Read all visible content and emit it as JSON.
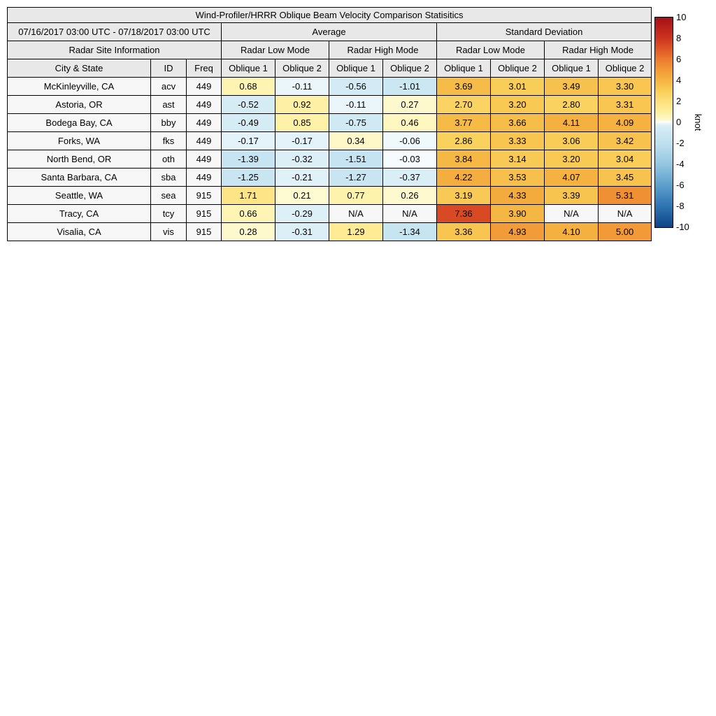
{
  "title": "Wind-Profiler/HRRR Oblique Beam Velocity Comparison Statisitics",
  "header": {
    "date_range": "07/16/2017 03:00 UTC - 07/18/2017 03:00 UTC",
    "group_average": "Average",
    "group_stddev": "Standard Deviation",
    "site_info": "Radar Site Information",
    "modes": [
      "Radar Low Mode",
      "Radar High Mode",
      "Radar Low Mode",
      "Radar High Mode"
    ],
    "columns": [
      "City & State",
      "ID",
      "Freq",
      "Oblique 1",
      "Oblique 2",
      "Oblique 1",
      "Oblique 2",
      "Oblique 1",
      "Oblique 2",
      "Oblique 1",
      "Oblique 2"
    ]
  },
  "colors": {
    "header_bg": "#E8E8E8",
    "site_cell_bg": "#F7F7F7",
    "na_cell_bg": "#F7F7F7",
    "border": "#000000",
    "colormap_stops": [
      {
        "v": -10,
        "c": "#0E4485"
      },
      {
        "v": -8,
        "c": "#2F73B3"
      },
      {
        "v": -6,
        "c": "#5C9FCB"
      },
      {
        "v": -4,
        "c": "#93C6E0"
      },
      {
        "v": -2,
        "c": "#BFE0EF"
      },
      {
        "v": -1,
        "c": "#CBE7F2"
      },
      {
        "v": -0.5,
        "c": "#D5ECF5"
      },
      {
        "v": -0.2,
        "c": "#E0F1F8"
      },
      {
        "v": -0.06,
        "c": "#EFF8FB"
      },
      {
        "v": 0,
        "c": "#FDFEFE"
      },
      {
        "v": 0.06,
        "c": "#FFFEF2"
      },
      {
        "v": 0.2,
        "c": "#FEFAD2"
      },
      {
        "v": 0.7,
        "c": "#FEF4B0"
      },
      {
        "v": 1.2,
        "c": "#FEEC97"
      },
      {
        "v": 2,
        "c": "#FCE07C"
      },
      {
        "v": 3,
        "c": "#F9CE58"
      },
      {
        "v": 4,
        "c": "#F5B441"
      },
      {
        "v": 5,
        "c": "#F19A37"
      },
      {
        "v": 6,
        "c": "#EC7A2D"
      },
      {
        "v": 8,
        "c": "#CE3420"
      },
      {
        "v": 10,
        "c": "#A31118"
      }
    ]
  },
  "chart_data": {
    "type": "heatmap",
    "title": "Wind-Profiler/HRRR Oblique Beam Velocity Comparison Statisitics",
    "unit": "knot",
    "column_groups": [
      "Average / Radar Low Mode / Oblique 1",
      "Average / Radar Low Mode / Oblique 2",
      "Average / Radar High Mode / Oblique 1",
      "Average / Radar High Mode / Oblique 2",
      "Standard Deviation / Radar Low Mode / Oblique 1",
      "Standard Deviation / Radar Low Mode / Oblique 2",
      "Standard Deviation / Radar High Mode / Oblique 1",
      "Standard Deviation / Radar High Mode / Oblique 2"
    ],
    "rows": [
      {
        "city": "McKinleyville, CA",
        "id": "acv",
        "freq": "449",
        "values": [
          "0.68",
          "-0.11",
          "-0.56",
          "-1.01",
          "3.69",
          "3.01",
          "3.49",
          "3.30"
        ]
      },
      {
        "city": "Astoria, OR",
        "id": "ast",
        "freq": "449",
        "values": [
          "-0.52",
          "0.92",
          "-0.11",
          "0.27",
          "2.70",
          "3.20",
          "2.80",
          "3.31"
        ]
      },
      {
        "city": "Bodega Bay, CA",
        "id": "bby",
        "freq": "449",
        "values": [
          "-0.49",
          "0.85",
          "-0.75",
          "0.46",
          "3.77",
          "3.66",
          "4.11",
          "4.09"
        ]
      },
      {
        "city": "Forks, WA",
        "id": "fks",
        "freq": "449",
        "values": [
          "-0.17",
          "-0.17",
          "0.34",
          "-0.06",
          "2.86",
          "3.33",
          "3.06",
          "3.42"
        ]
      },
      {
        "city": "North Bend, OR",
        "id": "oth",
        "freq": "449",
        "values": [
          "-1.39",
          "-0.32",
          "-1.51",
          "-0.03",
          "3.84",
          "3.14",
          "3.20",
          "3.04"
        ]
      },
      {
        "city": "Santa Barbara, CA",
        "id": "sba",
        "freq": "449",
        "values": [
          "-1.25",
          "-0.21",
          "-1.27",
          "-0.37",
          "4.22",
          "3.53",
          "4.07",
          "3.45"
        ]
      },
      {
        "city": "Seattle, WA",
        "id": "sea",
        "freq": "915",
        "values": [
          "1.71",
          "0.21",
          "0.77",
          "0.26",
          "3.19",
          "4.33",
          "3.39",
          "5.31"
        ]
      },
      {
        "city": "Tracy, CA",
        "id": "tcy",
        "freq": "915",
        "values": [
          "0.66",
          "-0.29",
          "N/A",
          "N/A",
          "7.36",
          "3.90",
          "N/A",
          "N/A"
        ]
      },
      {
        "city": "Visalia, CA",
        "id": "vis",
        "freq": "915",
        "values": [
          "0.28",
          "-0.31",
          "1.29",
          "-1.34",
          "3.36",
          "4.93",
          "4.10",
          "5.00"
        ]
      }
    ],
    "colorbar": {
      "min": -10,
      "max": 10,
      "ticks": [
        10,
        8,
        6,
        4,
        2,
        0,
        -2,
        -4,
        -6,
        -8,
        -10
      ],
      "label": "knot"
    }
  }
}
